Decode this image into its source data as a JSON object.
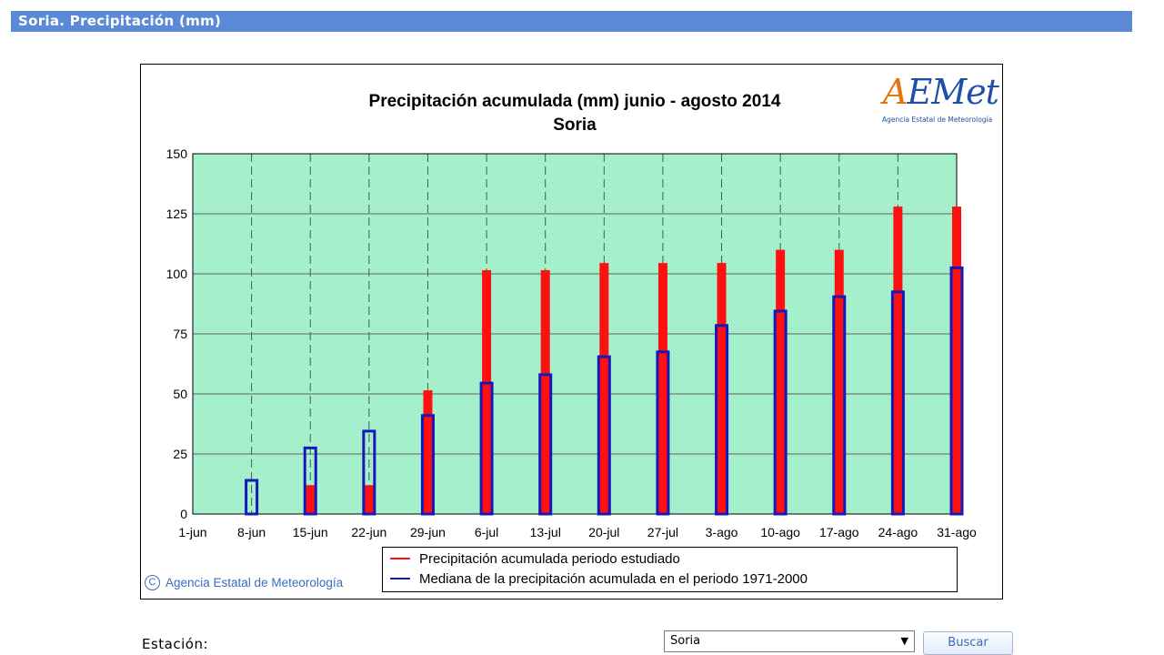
{
  "header": {
    "title": "Soria. Precipitación (mm)"
  },
  "logo": {
    "text_a": "A",
    "text_rest": "EMet",
    "subtitle": "Agencia Estatal de Meteorología"
  },
  "copyright": {
    "symbol": "C",
    "text": "Agencia Estatal de Meteorología"
  },
  "form": {
    "station_label": "Estación:",
    "station_value": "Soria",
    "select_arrow": "▼",
    "search_button": "Buscar"
  },
  "colors": {
    "header": "#5b89d6",
    "plot_bg": "#9eeec8",
    "studied": "#ff1010",
    "median": "#1818b8"
  },
  "chart_data": {
    "type": "bar",
    "title": "Precipitación acumulada (mm) junio - agosto 2014",
    "subtitle": "Soria",
    "xlabel": "",
    "ylabel": "",
    "ylim": [
      0,
      150
    ],
    "yticks": [
      0,
      25,
      50,
      75,
      100,
      125,
      150
    ],
    "grid": true,
    "legend_position": "bottom",
    "categories": [
      "1-jun",
      "8-jun",
      "15-jun",
      "22-jun",
      "29-jun",
      "6-jul",
      "13-jul",
      "20-jul",
      "27-jul",
      "3-ago",
      "10-ago",
      "17-ago",
      "24-ago",
      "31-ago"
    ],
    "series": [
      {
        "name": "Precipitación acumulada periodo estudiado",
        "color": "#ff1010",
        "values": [
          0,
          0,
          12,
          12,
          51.5,
          101.5,
          101.5,
          104.5,
          104.5,
          104.5,
          110,
          110,
          128,
          128
        ]
      },
      {
        "name": "Mediana de la precipitación acumulada en el periodo 1971-2000",
        "color": "#1818b8",
        "values": [
          0,
          14,
          27.5,
          34.5,
          41,
          54.5,
          58,
          65.5,
          67.5,
          78.5,
          84.5,
          90.5,
          92.5,
          102.5
        ]
      }
    ]
  }
}
